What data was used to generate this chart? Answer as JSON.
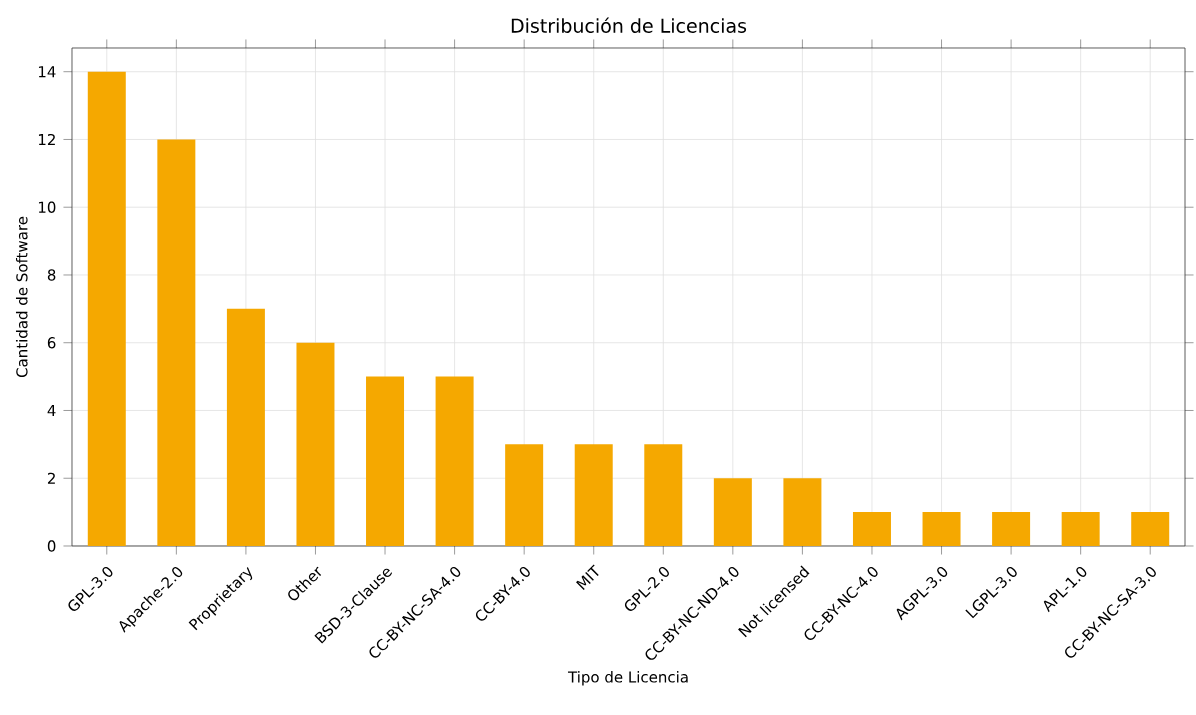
{
  "chart_data": {
    "type": "bar",
    "title": "Distribución de Licencias",
    "xlabel": "Tipo de Licencia",
    "ylabel": "Cantidad de Software",
    "categories": [
      "GPL-3.0",
      "Apache-2.0",
      "Proprietary",
      "Other",
      "BSD-3-Clause",
      "CC-BY-NC-SA-4.0",
      "CC-BY-4.0",
      "MIT",
      "GPL-2.0",
      "CC-BY-NC-ND-4.0",
      "Not licensed",
      "CC-BY-NC-4.0",
      "AGPL-3.0",
      "LGPL-3.0",
      "APL-1.0",
      "CC-BY-NC-SA-3.0"
    ],
    "values": [
      14,
      12,
      7,
      6,
      5,
      5,
      3,
      3,
      3,
      2,
      2,
      1,
      1,
      1,
      1,
      1
    ],
    "color": "#f5a800",
    "ylim": [
      0,
      14.7
    ],
    "yticks": [
      0,
      2,
      4,
      6,
      8,
      10,
      12,
      14
    ],
    "grid": true
  }
}
